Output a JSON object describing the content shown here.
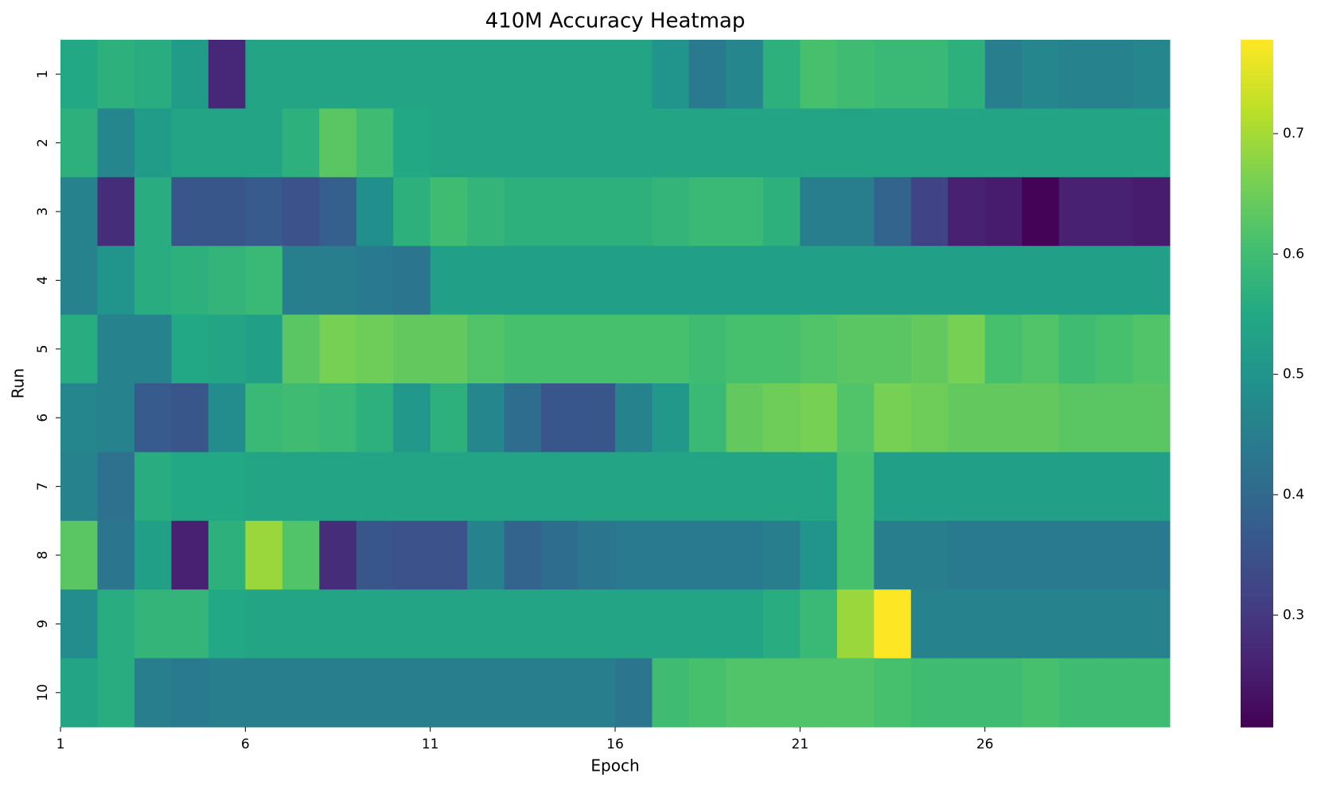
{
  "chart_data": {
    "type": "heatmap",
    "title": "410M Accuracy Heatmap",
    "x_label": "Epoch",
    "y_label": "Run",
    "x": [
      1,
      2,
      3,
      4,
      5,
      6,
      7,
      8,
      9,
      10,
      11,
      12,
      13,
      14,
      15,
      16,
      17,
      18,
      19,
      20,
      21,
      22,
      23,
      24,
      25,
      26,
      27,
      28,
      29,
      30
    ],
    "xlim": [
      1,
      31
    ],
    "xticks": [
      1,
      6,
      11,
      16,
      21,
      26
    ],
    "rows": [
      "1",
      "2",
      "3",
      "4",
      "5",
      "6",
      "7",
      "8",
      "9",
      "10"
    ],
    "values": [
      [
        0.55,
        0.57,
        0.56,
        0.52,
        0.27,
        0.54,
        0.54,
        0.54,
        0.54,
        0.54,
        0.54,
        0.54,
        0.54,
        0.54,
        0.54,
        0.54,
        0.5,
        0.44,
        0.47,
        0.57,
        0.61,
        0.6,
        0.59,
        0.59,
        0.57,
        0.45,
        0.47,
        0.46,
        0.46,
        0.47
      ],
      [
        0.57,
        0.47,
        0.52,
        0.54,
        0.54,
        0.54,
        0.57,
        0.63,
        0.6,
        0.55,
        0.54,
        0.54,
        0.54,
        0.54,
        0.54,
        0.54,
        0.54,
        0.54,
        0.54,
        0.54,
        0.54,
        0.54,
        0.54,
        0.54,
        0.54,
        0.54,
        0.54,
        0.54,
        0.54,
        0.54
      ],
      [
        0.46,
        0.28,
        0.56,
        0.36,
        0.36,
        0.37,
        0.35,
        0.38,
        0.49,
        0.57,
        0.6,
        0.58,
        0.57,
        0.57,
        0.57,
        0.57,
        0.58,
        0.59,
        0.59,
        0.57,
        0.45,
        0.45,
        0.39,
        0.32,
        0.26,
        0.25,
        0.21,
        0.26,
        0.26,
        0.25
      ],
      [
        0.46,
        0.5,
        0.56,
        0.57,
        0.58,
        0.59,
        0.45,
        0.45,
        0.44,
        0.43,
        0.53,
        0.53,
        0.53,
        0.53,
        0.53,
        0.53,
        0.53,
        0.53,
        0.53,
        0.53,
        0.53,
        0.53,
        0.53,
        0.53,
        0.53,
        0.53,
        0.53,
        0.53,
        0.53,
        0.53
      ],
      [
        0.56,
        0.46,
        0.46,
        0.55,
        0.54,
        0.53,
        0.63,
        0.66,
        0.65,
        0.64,
        0.64,
        0.62,
        0.61,
        0.61,
        0.61,
        0.61,
        0.61,
        0.6,
        0.61,
        0.61,
        0.62,
        0.63,
        0.63,
        0.64,
        0.66,
        0.61,
        0.62,
        0.6,
        0.61,
        0.62
      ],
      [
        0.47,
        0.46,
        0.37,
        0.36,
        0.48,
        0.59,
        0.6,
        0.59,
        0.57,
        0.51,
        0.57,
        0.47,
        0.41,
        0.36,
        0.36,
        0.46,
        0.51,
        0.59,
        0.64,
        0.65,
        0.66,
        0.62,
        0.66,
        0.65,
        0.64,
        0.64,
        0.64,
        0.63,
        0.63,
        0.63
      ],
      [
        0.46,
        0.42,
        0.56,
        0.55,
        0.55,
        0.54,
        0.54,
        0.54,
        0.54,
        0.54,
        0.54,
        0.54,
        0.54,
        0.54,
        0.54,
        0.54,
        0.54,
        0.54,
        0.54,
        0.54,
        0.54,
        0.61,
        0.53,
        0.53,
        0.53,
        0.53,
        0.53,
        0.53,
        0.53,
        0.53
      ],
      [
        0.63,
        0.43,
        0.53,
        0.26,
        0.57,
        0.69,
        0.62,
        0.28,
        0.36,
        0.35,
        0.35,
        0.46,
        0.39,
        0.41,
        0.43,
        0.44,
        0.44,
        0.44,
        0.44,
        0.45,
        0.5,
        0.61,
        0.45,
        0.45,
        0.44,
        0.44,
        0.44,
        0.44,
        0.44,
        0.44
      ],
      [
        0.48,
        0.56,
        0.58,
        0.58,
        0.55,
        0.54,
        0.54,
        0.54,
        0.54,
        0.54,
        0.54,
        0.54,
        0.54,
        0.54,
        0.54,
        0.54,
        0.54,
        0.54,
        0.54,
        0.56,
        0.59,
        0.69,
        0.78,
        0.46,
        0.46,
        0.46,
        0.46,
        0.46,
        0.46,
        0.46
      ],
      [
        0.54,
        0.56,
        0.45,
        0.44,
        0.45,
        0.45,
        0.45,
        0.45,
        0.45,
        0.45,
        0.45,
        0.45,
        0.45,
        0.45,
        0.45,
        0.43,
        0.6,
        0.61,
        0.62,
        0.62,
        0.62,
        0.62,
        0.61,
        0.6,
        0.6,
        0.6,
        0.61,
        0.6,
        0.6,
        0.6
      ]
    ],
    "clim": [
      0.207,
      0.778
    ],
    "cticks": [
      0.3,
      0.4,
      0.5,
      0.6,
      0.7
    ],
    "colormap": [
      "#440154",
      "#482475",
      "#414487",
      "#355f8d",
      "#2a788e",
      "#21918c",
      "#22a884",
      "#44bf70",
      "#7ad151",
      "#bddf26",
      "#fde725"
    ]
  }
}
